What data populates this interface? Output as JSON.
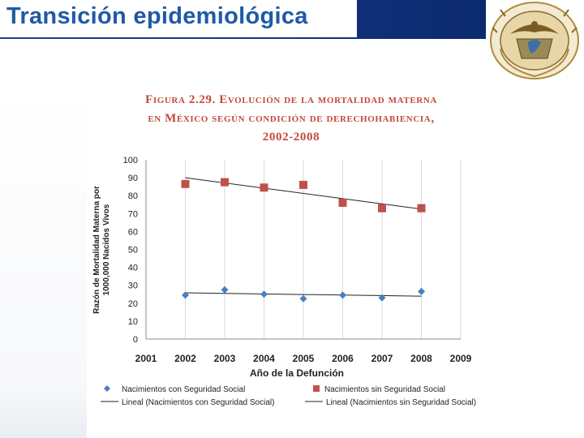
{
  "page": {
    "title": "Transición epidemiológica"
  },
  "logo": {
    "name": "unam-crest"
  },
  "figure": {
    "title_line1": "Figura 2.29. Evolución de la mortalidad materna",
    "title_line2": "en México según condición de derechohabiencia,",
    "title_line3": "2002-2008"
  },
  "colors": {
    "header": "#1a3f8f",
    "title": "#1f5aa6",
    "series1": "#4a7fc0",
    "series2": "#c0504d",
    "figure_title": "#c24a3a"
  },
  "chart_data": {
    "type": "scatter",
    "xlabel": "Año de la Defunción",
    "ylabel_line1": "Razón de Mortalidad Materna por",
    "ylabel_line2": "1000,000 Nacidos Vivos",
    "xlim": [
      2001,
      2009
    ],
    "ylim": [
      0,
      100
    ],
    "x_ticks": [
      2001,
      2002,
      2003,
      2004,
      2005,
      2006,
      2007,
      2008,
      2009
    ],
    "y_ticks": [
      0,
      10,
      20,
      30,
      40,
      50,
      60,
      70,
      80,
      90,
      100
    ],
    "series": [
      {
        "name": "Nacimientos con Seguridad Social",
        "marker": "diamond",
        "x": [
          2002,
          2003,
          2004,
          2005,
          2006,
          2007,
          2008
        ],
        "values": [
          24.5,
          27.5,
          25.0,
          22.5,
          24.5,
          23.0,
          26.5
        ],
        "trend_legend": "Lineal (Nacimientos con Seguridad Social)",
        "trend": [
          25.8,
          23.9
        ]
      },
      {
        "name": "Nacimientos sin Seguridad Social",
        "marker": "square",
        "x": [
          2002,
          2003,
          2004,
          2005,
          2006,
          2007,
          2008
        ],
        "values": [
          86.5,
          87.5,
          84.5,
          86.0,
          76.0,
          73.0,
          73.0
        ],
        "trend_legend": "Lineal (Nacimientos sin Seguridad Social)",
        "trend": [
          90.0,
          72.5
        ]
      }
    ]
  }
}
